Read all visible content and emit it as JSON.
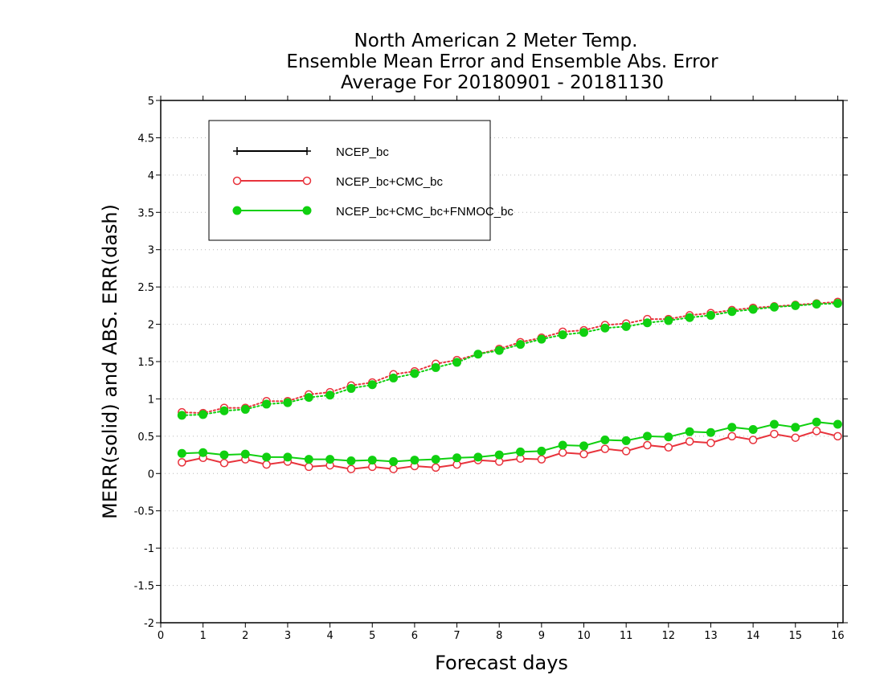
{
  "chart_data": {
    "type": "line",
    "title": [
      "North American 2 Meter Temp.",
      "Ensemble Mean Error and Ensemble Abs. Error",
      "Average For 20180901 - 20181130"
    ],
    "xlabel": "Forecast days",
    "ylabel": "MERR(solid) and ABS. ERR(dash)",
    "xlim": [
      0,
      16.125
    ],
    "ylim": [
      -2,
      5
    ],
    "xticks": [
      0,
      1,
      2,
      3,
      4,
      5,
      6,
      7,
      8,
      9,
      10,
      11,
      12,
      13,
      14,
      15,
      16
    ],
    "yticks": [
      -2,
      -1.5,
      -1,
      -0.5,
      0,
      0.5,
      1,
      1.5,
      2,
      2.5,
      3,
      3.5,
      4,
      4.5,
      5
    ],
    "ytick_labels": [
      "-2",
      "-1.5",
      "-1",
      "-0.5",
      "0",
      "0.5",
      "1",
      "1.5",
      "2",
      "2.5",
      "3",
      "3.5",
      "4",
      "4.5",
      "5"
    ],
    "grid": true,
    "legend_position": "top-left",
    "x": [
      0.5,
      1.0,
      1.5,
      2.0,
      2.5,
      3.0,
      3.5,
      4.0,
      4.5,
      5.0,
      5.5,
      6.0,
      6.5,
      7.0,
      7.5,
      8.0,
      8.5,
      9.0,
      9.5,
      10.0,
      10.5,
      11.0,
      11.5,
      12.0,
      12.5,
      13.0,
      13.5,
      14.0,
      14.5,
      15.0,
      15.5,
      16.0
    ],
    "series": [
      {
        "name": "NCEP_bc",
        "color": "#000000",
        "marker": "plus",
        "merr": [],
        "abs_err": []
      },
      {
        "name": "NCEP_bc+CMC_bc",
        "color": "#e8333c",
        "marker": "open-circle",
        "merr": [
          0.15,
          0.21,
          0.14,
          0.19,
          0.12,
          0.16,
          0.09,
          0.11,
          0.06,
          0.09,
          0.06,
          0.1,
          0.08,
          0.12,
          0.18,
          0.16,
          0.2,
          0.19,
          0.28,
          0.26,
          0.33,
          0.3,
          0.38,
          0.35,
          0.43,
          0.41,
          0.5,
          0.45,
          0.53,
          0.48,
          0.57,
          0.5
        ],
        "abs_err": [
          0.82,
          0.81,
          0.88,
          0.88,
          0.97,
          0.97,
          1.06,
          1.09,
          1.18,
          1.22,
          1.33,
          1.37,
          1.47,
          1.52,
          1.6,
          1.67,
          1.76,
          1.82,
          1.9,
          1.92,
          1.99,
          2.01,
          2.07,
          2.07,
          2.12,
          2.15,
          2.19,
          2.22,
          2.24,
          2.26,
          2.28,
          2.3
        ]
      },
      {
        "name": "NCEP_bc+CMC_bc+FNMOC_bc",
        "color": "#10d010",
        "marker": "filled-circle",
        "merr": [
          0.27,
          0.28,
          0.25,
          0.26,
          0.22,
          0.22,
          0.19,
          0.19,
          0.17,
          0.18,
          0.16,
          0.18,
          0.19,
          0.21,
          0.22,
          0.25,
          0.29,
          0.3,
          0.38,
          0.37,
          0.45,
          0.44,
          0.5,
          0.49,
          0.56,
          0.55,
          0.62,
          0.59,
          0.66,
          0.62,
          0.69,
          0.66
        ],
        "abs_err": [
          0.78,
          0.79,
          0.84,
          0.86,
          0.93,
          0.95,
          1.02,
          1.05,
          1.14,
          1.19,
          1.28,
          1.34,
          1.42,
          1.49,
          1.6,
          1.65,
          1.73,
          1.8,
          1.86,
          1.89,
          1.95,
          1.97,
          2.02,
          2.05,
          2.09,
          2.12,
          2.17,
          2.2,
          2.23,
          2.25,
          2.27,
          2.28
        ]
      }
    ]
  }
}
